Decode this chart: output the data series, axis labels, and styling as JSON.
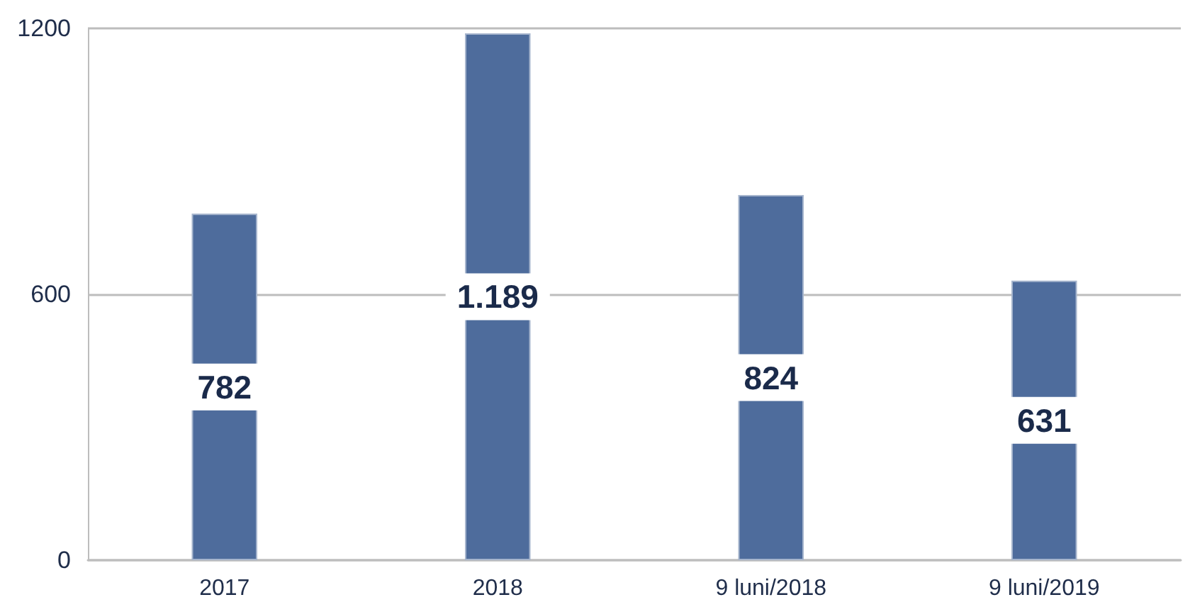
{
  "chart_data": {
    "type": "bar",
    "categories": [
      "2017",
      "2018",
      "9 luni/2018",
      "9 luni/2019"
    ],
    "values": [
      782,
      1189,
      824,
      631
    ],
    "value_labels": [
      "782",
      "1.189",
      "824",
      "631"
    ],
    "color": "#4e6c9c",
    "ylim": [
      0,
      1200
    ],
    "yticks": [
      0,
      600,
      1200
    ],
    "grid": "y"
  }
}
